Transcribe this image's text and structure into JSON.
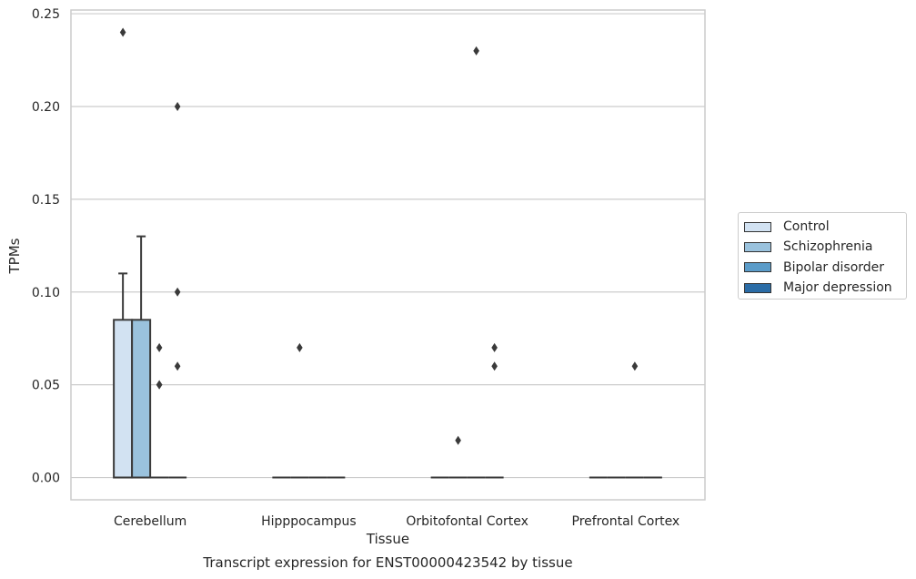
{
  "chart_data": {
    "type": "box",
    "title": "",
    "caption": "Transcript expression for ENST00000423542 by tissue",
    "xlabel": "Tissue",
    "ylabel": "TPMs",
    "ylim": [
      -0.012,
      0.252
    ],
    "yticks": [
      "0.00",
      "0.05",
      "0.10",
      "0.15",
      "0.20",
      "0.25"
    ],
    "ytick_values": [
      0,
      0.05,
      0.1,
      0.15,
      0.2,
      0.25
    ],
    "categories": [
      "Cerebellum",
      "Hipppocampus",
      "Orbitofontal Cortex",
      "Prefrontal Cortex"
    ],
    "grid": true,
    "legend_position": "right",
    "series": [
      {
        "name": "Control",
        "color": "#d2e2f2",
        "boxes": [
          {
            "q1": 0,
            "median": 0,
            "q3": 0.085,
            "whisker_low": 0,
            "whisker_high": 0.11,
            "outliers": [
              0.24
            ]
          },
          {
            "q1": 0,
            "median": 0,
            "q3": 0,
            "whisker_low": 0,
            "whisker_high": 0,
            "outliers": []
          },
          {
            "q1": 0,
            "median": 0,
            "q3": 0,
            "whisker_low": 0,
            "whisker_high": 0,
            "outliers": []
          },
          {
            "q1": 0,
            "median": 0,
            "q3": 0,
            "whisker_low": 0,
            "whisker_high": 0,
            "outliers": []
          }
        ]
      },
      {
        "name": "Schizophrenia",
        "color": "#9ac2dd",
        "boxes": [
          {
            "q1": 0,
            "median": 0,
            "q3": 0.085,
            "whisker_low": 0,
            "whisker_high": 0.13,
            "outliers": []
          },
          {
            "q1": 0,
            "median": 0,
            "q3": 0,
            "whisker_low": 0,
            "whisker_high": 0,
            "outliers": [
              0.07
            ]
          },
          {
            "q1": 0,
            "median": 0,
            "q3": 0,
            "whisker_low": 0,
            "whisker_high": 0,
            "outliers": [
              0.02
            ]
          },
          {
            "q1": 0,
            "median": 0,
            "q3": 0,
            "whisker_low": 0,
            "whisker_high": 0,
            "outliers": []
          }
        ]
      },
      {
        "name": "Bipolar disorder",
        "color": "#5b9cc9",
        "boxes": [
          {
            "q1": 0,
            "median": 0,
            "q3": 0,
            "whisker_low": 0,
            "whisker_high": 0,
            "outliers": [
              0.07,
              0.05,
              0.05
            ]
          },
          {
            "q1": 0,
            "median": 0,
            "q3": 0,
            "whisker_low": 0,
            "whisker_high": 0,
            "outliers": []
          },
          {
            "q1": 0,
            "median": 0,
            "q3": 0,
            "whisker_low": 0,
            "whisker_high": 0,
            "outliers": [
              0.23
            ]
          },
          {
            "q1": 0,
            "median": 0,
            "q3": 0,
            "whisker_low": 0,
            "whisker_high": 0,
            "outliers": [
              0.06
            ]
          }
        ]
      },
      {
        "name": "Major depression",
        "color": "#2b6ca6",
        "boxes": [
          {
            "q1": 0,
            "median": 0,
            "q3": 0,
            "whisker_low": 0,
            "whisker_high": 0,
            "outliers": [
              0.2,
              0.1,
              0.06
            ]
          },
          {
            "q1": 0,
            "median": 0,
            "q3": 0,
            "whisker_low": 0,
            "whisker_high": 0,
            "outliers": []
          },
          {
            "q1": 0,
            "median": 0,
            "q3": 0,
            "whisker_low": 0,
            "whisker_high": 0,
            "outliers": [
              0.07,
              0.06
            ]
          },
          {
            "q1": 0,
            "median": 0,
            "q3": 0,
            "whisker_low": 0,
            "whisker_high": 0,
            "outliers": []
          }
        ]
      }
    ]
  }
}
